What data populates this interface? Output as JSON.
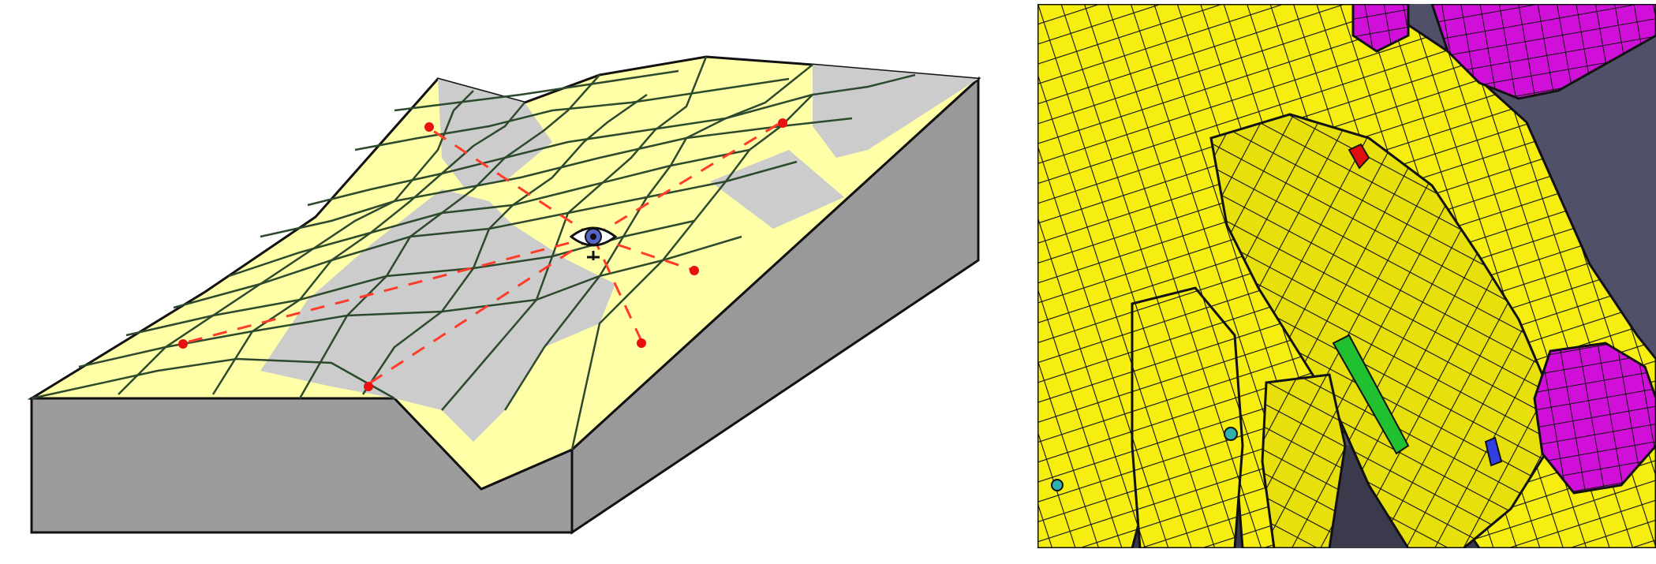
{
  "figure": {
    "panels": [
      {
        "id": "terrain-visibility-diagram",
        "elements": [
          "terrain-block",
          "quad-mesh",
          "visibility-regions",
          "viewer-eye-icon",
          "sight-lines",
          "target-points"
        ]
      },
      {
        "id": "quad-mesh-model-closeup",
        "elements": [
          "yellow-quad-mesh",
          "magenta-regions",
          "highlighted-red-face",
          "highlighted-blue-face",
          "highlighted-green-strip"
        ]
      }
    ],
    "colors": {
      "visible_region": "#ffffa8",
      "occluded_region": "#cccccc",
      "block_side": "#999999",
      "block_side_light": "#b0b0b0",
      "mesh_edge": "#2d6a3e",
      "sight_line": "#ff3b2a",
      "target_point": "#e81010",
      "eye_iris": "#5565c8",
      "model_yellow": "#f5ee10",
      "model_magenta": "#d010d8",
      "model_edge": "#111111",
      "background_dark": "#505068",
      "highlight_red": "#e01010",
      "highlight_blue": "#3040e0",
      "highlight_green": "#20c030"
    }
  }
}
